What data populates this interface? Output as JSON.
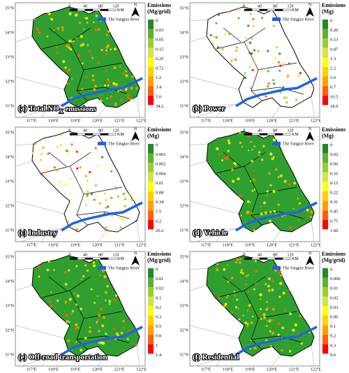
{
  "shared": {
    "scale_ticks": [
      "0",
      "40",
      "80",
      "120"
    ],
    "scale_unit": "KM",
    "north": "N",
    "river": "The Yangtze River",
    "lat_labels": [
      "35°N",
      "34°N",
      "33°N",
      "32°N",
      "31°N"
    ],
    "lon_labels": [
      "117°E",
      "118°E",
      "119°E",
      "120°E",
      "121°E",
      "122°E"
    ]
  },
  "panels": [
    {
      "title": "(a) Total NO",
      "title_sub": "X",
      "title_tail": " emissions",
      "legend_title": [
        "Emissions",
        "(Mg/grid)"
      ],
      "legend_labels": [
        "0",
        "0.03",
        "0.05",
        "0.15",
        "0.25",
        "0.72",
        "1.2",
        "3.4",
        "5.0",
        "34.2"
      ]
    },
    {
      "title": "(b) Power",
      "legend_title": [
        "Emissions",
        "(Mg)"
      ],
      "legend_labels": [
        "0",
        "0.26",
        "0.53",
        "0.87",
        "1.3",
        "2.2",
        "3.6",
        "6.7",
        "10.5",
        "18.9"
      ]
    },
    {
      "title": "(c) Industry",
      "legend_title": [
        "Emissions",
        "(Mg)"
      ],
      "legend_labels": [
        "0",
        "0.001",
        "0.002",
        "0.004",
        "0.01",
        "0.08",
        "0.34",
        "1.5",
        "6.2",
        "26.2"
      ]
    },
    {
      "title": "(d) Vehicle",
      "legend_title": [
        "Emissions",
        "(Mg)"
      ],
      "legend_labels": [
        "0",
        "0.02",
        "0.06",
        "0.10",
        "0.15",
        "0.22",
        "0.31",
        "0.45",
        "0.75",
        "1.66"
      ]
    },
    {
      "title": "(e) Off-road transportation",
      "legend_title": [
        "Emissions",
        "(Mg/grid)"
      ],
      "legend_labels": [
        "0",
        "0.01",
        "0.02",
        "0.1",
        "0.2",
        "0.3",
        "0.5",
        "0.8",
        "1",
        "1.4"
      ]
    },
    {
      "title": "(f) Residential",
      "legend_title": [
        "Emissions",
        "(Mg/grid)"
      ],
      "legend_labels": [
        "0",
        "0.006",
        "0.01",
        "0.02",
        "0.03",
        "0.06",
        "0.1",
        "0.2",
        "0.3",
        "0.6"
      ]
    }
  ]
}
